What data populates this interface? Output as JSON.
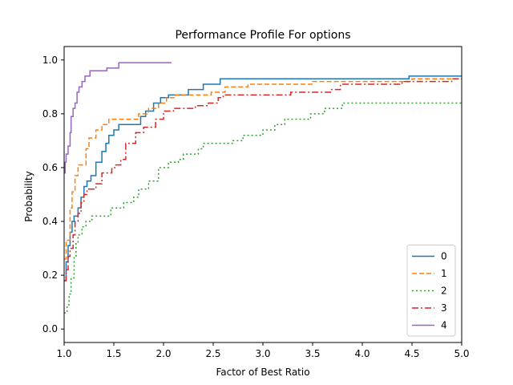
{
  "chart_data": {
    "type": "line",
    "step": true,
    "title": "Performance Profile For options",
    "xlabel": "Factor of Best Ratio",
    "ylabel": "Probability",
    "xlim": [
      1.0,
      5.0
    ],
    "ylim": [
      -0.05,
      1.05
    ],
    "xticks": [
      1.0,
      1.5,
      2.0,
      2.5,
      3.0,
      3.5,
      4.0,
      4.5,
      5.0
    ],
    "xtick_labels": [
      "1.0",
      "1.5",
      "2.0",
      "2.5",
      "3.0",
      "3.5",
      "4.0",
      "4.5",
      "5.0"
    ],
    "yticks": [
      0.0,
      0.2,
      0.4,
      0.6,
      0.8,
      1.0
    ],
    "ytick_labels": [
      "0.0",
      "0.2",
      "0.4",
      "0.6",
      "0.8",
      "1.0"
    ],
    "legend_position": "lower right",
    "series": [
      {
        "name": "0",
        "color": "#1f77b4",
        "dash": "",
        "points": [
          [
            1.0,
            0.18
          ],
          [
            1.02,
            0.25
          ],
          [
            1.04,
            0.31
          ],
          [
            1.06,
            0.36
          ],
          [
            1.08,
            0.4
          ],
          [
            1.1,
            0.42
          ],
          [
            1.14,
            0.45
          ],
          [
            1.17,
            0.49
          ],
          [
            1.2,
            0.53
          ],
          [
            1.23,
            0.55
          ],
          [
            1.27,
            0.57
          ],
          [
            1.32,
            0.62
          ],
          [
            1.38,
            0.66
          ],
          [
            1.42,
            0.69
          ],
          [
            1.45,
            0.72
          ],
          [
            1.5,
            0.74
          ],
          [
            1.55,
            0.76
          ],
          [
            1.77,
            0.79
          ],
          [
            1.82,
            0.81
          ],
          [
            1.9,
            0.84
          ],
          [
            1.97,
            0.86
          ],
          [
            2.05,
            0.87
          ],
          [
            2.25,
            0.89
          ],
          [
            2.4,
            0.91
          ],
          [
            2.57,
            0.93
          ],
          [
            4.47,
            0.94
          ],
          [
            5.0,
            0.94
          ]
        ]
      },
      {
        "name": "1",
        "color": "#ff7f0e",
        "dash": "6,3",
        "points": [
          [
            1.0,
            0.26
          ],
          [
            1.02,
            0.33
          ],
          [
            1.06,
            0.45
          ],
          [
            1.08,
            0.51
          ],
          [
            1.11,
            0.57
          ],
          [
            1.14,
            0.61
          ],
          [
            1.22,
            0.67
          ],
          [
            1.25,
            0.71
          ],
          [
            1.32,
            0.74
          ],
          [
            1.38,
            0.76
          ],
          [
            1.45,
            0.78
          ],
          [
            1.75,
            0.8
          ],
          [
            1.85,
            0.82
          ],
          [
            1.95,
            0.84
          ],
          [
            2.03,
            0.86
          ],
          [
            2.12,
            0.87
          ],
          [
            2.3,
            0.87
          ],
          [
            2.48,
            0.88
          ],
          [
            2.62,
            0.9
          ],
          [
            2.85,
            0.91
          ],
          [
            3.5,
            0.92
          ],
          [
            4.5,
            0.93
          ],
          [
            5.0,
            0.93
          ]
        ]
      },
      {
        "name": "2",
        "color": "#2ca02c",
        "dash": "2,3",
        "points": [
          [
            1.0,
            0.06
          ],
          [
            1.03,
            0.09
          ],
          [
            1.05,
            0.13
          ],
          [
            1.07,
            0.19
          ],
          [
            1.1,
            0.27
          ],
          [
            1.12,
            0.32
          ],
          [
            1.14,
            0.35
          ],
          [
            1.18,
            0.38
          ],
          [
            1.22,
            0.4
          ],
          [
            1.28,
            0.42
          ],
          [
            1.47,
            0.45
          ],
          [
            1.6,
            0.47
          ],
          [
            1.7,
            0.49
          ],
          [
            1.75,
            0.52
          ],
          [
            1.85,
            0.55
          ],
          [
            1.95,
            0.6
          ],
          [
            2.05,
            0.62
          ],
          [
            2.15,
            0.63
          ],
          [
            2.2,
            0.65
          ],
          [
            2.35,
            0.67
          ],
          [
            2.4,
            0.69
          ],
          [
            2.7,
            0.7
          ],
          [
            2.8,
            0.72
          ],
          [
            3.0,
            0.74
          ],
          [
            3.12,
            0.76
          ],
          [
            3.22,
            0.78
          ],
          [
            3.48,
            0.8
          ],
          [
            3.62,
            0.82
          ],
          [
            3.8,
            0.84
          ],
          [
            3.92,
            0.84
          ],
          [
            5.0,
            0.84
          ]
        ]
      },
      {
        "name": "3",
        "color": "#d62728",
        "dash": "8,3,2,3",
        "points": [
          [
            1.0,
            0.18
          ],
          [
            1.02,
            0.22
          ],
          [
            1.04,
            0.27
          ],
          [
            1.06,
            0.3
          ],
          [
            1.09,
            0.35
          ],
          [
            1.11,
            0.4
          ],
          [
            1.14,
            0.43
          ],
          [
            1.17,
            0.47
          ],
          [
            1.2,
            0.5
          ],
          [
            1.23,
            0.52
          ],
          [
            1.32,
            0.54
          ],
          [
            1.38,
            0.58
          ],
          [
            1.48,
            0.6
          ],
          [
            1.52,
            0.61
          ],
          [
            1.57,
            0.63
          ],
          [
            1.62,
            0.69
          ],
          [
            1.72,
            0.73
          ],
          [
            1.8,
            0.75
          ],
          [
            1.92,
            0.78
          ],
          [
            2.0,
            0.81
          ],
          [
            2.1,
            0.82
          ],
          [
            2.32,
            0.83
          ],
          [
            2.45,
            0.84
          ],
          [
            2.55,
            0.86
          ],
          [
            2.6,
            0.87
          ],
          [
            3.0,
            0.87
          ],
          [
            3.28,
            0.88
          ],
          [
            3.68,
            0.89
          ],
          [
            3.78,
            0.91
          ],
          [
            4.4,
            0.92
          ],
          [
            4.9,
            0.93
          ],
          [
            5.0,
            0.93
          ]
        ]
      },
      {
        "name": "4",
        "color": "#9467bd",
        "dash": "",
        "points": [
          [
            1.0,
            0.58
          ],
          [
            1.01,
            0.62
          ],
          [
            1.02,
            0.65
          ],
          [
            1.04,
            0.68
          ],
          [
            1.06,
            0.73
          ],
          [
            1.07,
            0.79
          ],
          [
            1.09,
            0.82
          ],
          [
            1.11,
            0.84
          ],
          [
            1.13,
            0.88
          ],
          [
            1.15,
            0.9
          ],
          [
            1.18,
            0.92
          ],
          [
            1.21,
            0.94
          ],
          [
            1.26,
            0.96
          ],
          [
            1.43,
            0.97
          ],
          [
            1.55,
            0.99
          ],
          [
            2.08,
            0.99
          ]
        ]
      }
    ]
  }
}
